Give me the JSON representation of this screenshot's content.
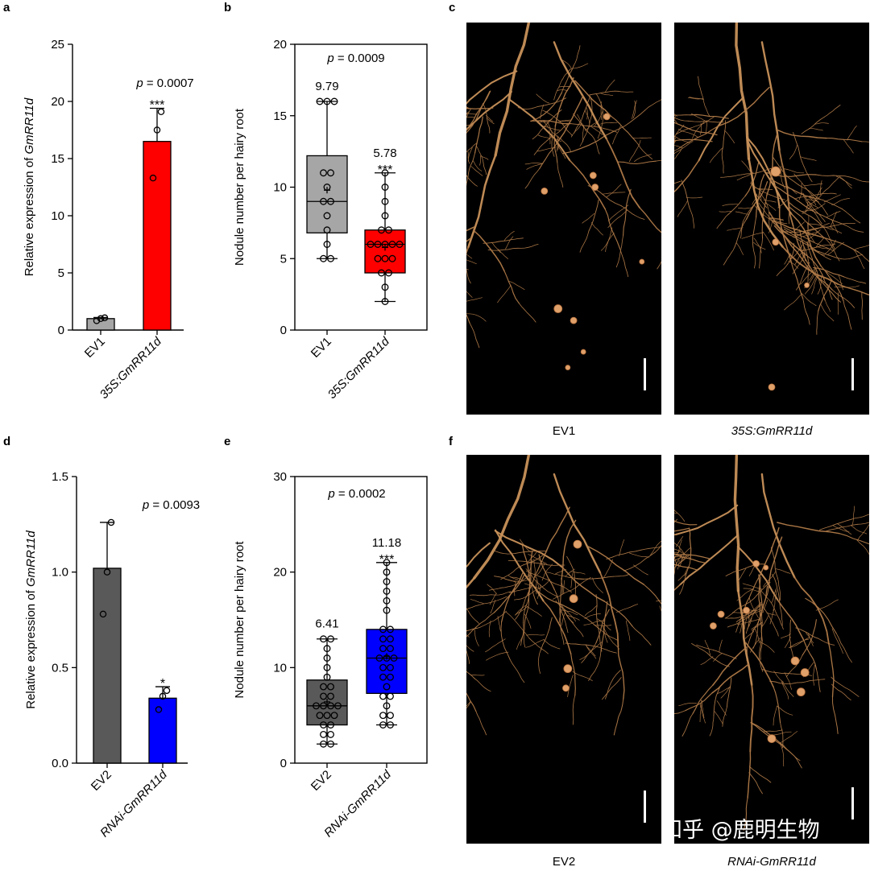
{
  "panel_labels": {
    "a": "a",
    "b": "b",
    "c": "c",
    "d": "d",
    "e": "e",
    "f": "f"
  },
  "chart_data": [
    {
      "id": "a",
      "type": "bar",
      "ylabel_prefix": "Relative expression of ",
      "ylabel_gene": "GmRR11d",
      "ylim": [
        0,
        25
      ],
      "yticks": [
        0,
        5,
        10,
        15,
        20,
        25
      ],
      "categories": [
        "EV1",
        "35S:GmRR11d"
      ],
      "values": [
        1.0,
        16.5
      ],
      "err_upper": [
        1.1,
        19.4
      ],
      "points": [
        [
          0.82,
          1.0,
          1.07
        ],
        [
          13.3,
          17.5,
          19.1
        ]
      ],
      "colors": [
        "#a6a6a6",
        "#ff0000"
      ],
      "p_label": "p",
      "p_value": " = 0.0007",
      "sig": [
        "",
        "***"
      ]
    },
    {
      "id": "b",
      "type": "box",
      "ylabel": "Nodule number per hairy root",
      "ylim": [
        0,
        20
      ],
      "yticks": [
        0,
        5,
        10,
        15,
        20
      ],
      "categories": [
        "EV1",
        "35S:GmRR11d"
      ],
      "boxes": [
        {
          "min": 5,
          "q1": 6.8,
          "median": 9,
          "q3": 12.2,
          "max": 16,
          "mean": 9.79
        },
        {
          "min": 2,
          "q1": 4,
          "median": 6,
          "q3": 7,
          "max": 11,
          "mean": 5.78
        }
      ],
      "points": [
        [
          5,
          5,
          6,
          7,
          8,
          9,
          9,
          10,
          11,
          11,
          16,
          16,
          16
        ],
        [
          2,
          3,
          4,
          4,
          5,
          5,
          5,
          6,
          6,
          6,
          6,
          6,
          7,
          7,
          8,
          9,
          10,
          11
        ]
      ],
      "mean_labels": [
        "9.79",
        "5.78"
      ],
      "colors": [
        "#a6a6a6",
        "#ff0000"
      ],
      "p_label": "p",
      "p_value": " = 0.0009",
      "sig": [
        "",
        "***"
      ]
    },
    {
      "id": "d",
      "type": "bar",
      "ylabel_prefix": "Relative expression of ",
      "ylabel_gene": "GmRR11d",
      "ylim": [
        0,
        1.5
      ],
      "yticks": [
        "0.0",
        "0.5",
        "1.0",
        "1.5"
      ],
      "categories": [
        "EV2",
        "RNAi-GmRR11d"
      ],
      "values": [
        1.02,
        0.34
      ],
      "err_upper": [
        1.26,
        0.4
      ],
      "points": [
        [
          0.78,
          1.0,
          1.26
        ],
        [
          0.28,
          0.35,
          0.38
        ]
      ],
      "colors": [
        "#595959",
        "#0000ff"
      ],
      "p_label": "p",
      "p_value": " = 0.0093",
      "sig": [
        "",
        "*"
      ]
    },
    {
      "id": "e",
      "type": "box",
      "ylabel": "Nodule number per hairy root",
      "ylim": [
        0,
        30
      ],
      "yticks": [
        0,
        10,
        20,
        30
      ],
      "categories": [
        "EV2",
        "RNAi-GmRR11d"
      ],
      "boxes": [
        {
          "min": 2,
          "q1": 4,
          "median": 6,
          "q3": 8.7,
          "max": 13,
          "mean": 6.41
        },
        {
          "min": 4,
          "q1": 7.3,
          "median": 11,
          "q3": 14,
          "max": 21,
          "mean": 11.18
        }
      ],
      "points": [
        [
          2,
          2,
          3,
          3,
          4,
          4,
          5,
          5,
          5,
          6,
          6,
          6,
          6,
          7,
          7,
          8,
          8,
          9,
          10,
          11,
          12,
          13,
          13
        ],
        [
          4,
          4,
          5,
          5,
          6,
          7,
          7,
          8,
          9,
          9,
          10,
          10,
          11,
          11,
          11,
          12,
          12,
          13,
          13,
          14,
          14,
          16,
          17,
          18,
          19,
          20,
          21
        ]
      ],
      "mean_labels": [
        "6.41",
        "11.18"
      ],
      "colors": [
        "#595959",
        "#0000ff"
      ],
      "p_label": "p",
      "p_value": " = 0.0002",
      "sig": [
        "",
        "***"
      ]
    }
  ],
  "photos": {
    "c": [
      "EV1",
      "35S:GmRR11d"
    ],
    "f": [
      "EV2",
      "RNAi-GmRR11d"
    ]
  },
  "watermark": "知乎 @鹿明生物"
}
